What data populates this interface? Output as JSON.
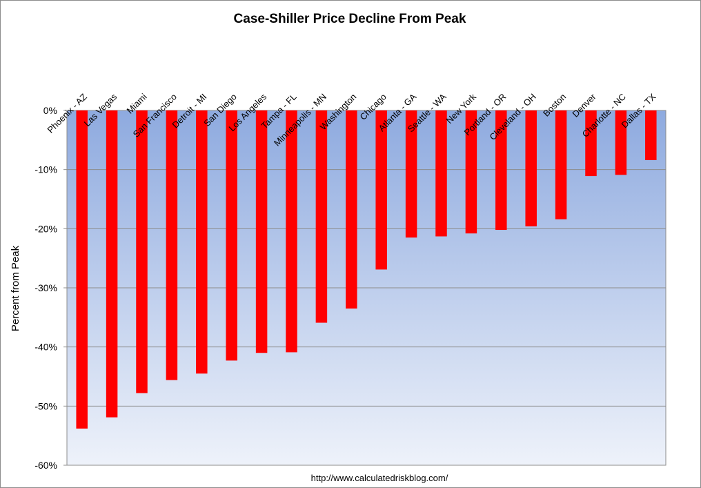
{
  "chart_data": {
    "type": "bar",
    "title": "Case-Shiller Price Decline From Peak",
    "xlabel": "",
    "ylabel": "Percent from Peak",
    "source": "http://www.calculatedriskblog.com/",
    "categories": [
      "Phoenix - AZ",
      "Las Vegas",
      "Miami",
      "San Francisco",
      "Detroit - MI",
      "San Diego",
      "Los Angeles",
      "Tampa - FL",
      "Minneapolis - MN",
      "Washington",
      "Chicago",
      "Atlanta - GA",
      "Seattle - WA",
      "New York",
      "Portland - OR",
      "Cleveland - OH",
      "Boston",
      "Denver",
      "Charlotte - NC",
      "Dallas - TX"
    ],
    "values": [
      -53.8,
      -51.9,
      -47.8,
      -45.6,
      -44.5,
      -42.3,
      -41.0,
      -40.9,
      -35.9,
      -33.5,
      -26.9,
      -21.5,
      -21.3,
      -20.8,
      -20.2,
      -19.6,
      -18.4,
      -11.1,
      -10.9,
      -8.4
    ],
    "ylim": [
      -60,
      0
    ],
    "yticks": [
      0,
      -10,
      -20,
      -30,
      -40,
      -50,
      -60
    ],
    "ytick_labels": [
      "0%",
      "-10%",
      "-20%",
      "-30%",
      "-40%",
      "-50%",
      "-60%"
    ],
    "grid": true,
    "legend": "none",
    "colors": {
      "bar": "#ff0000",
      "plot_bg_top": "#8eaadf",
      "plot_bg_bottom": "#eef2fa",
      "grid": "#8c8c8c"
    }
  }
}
